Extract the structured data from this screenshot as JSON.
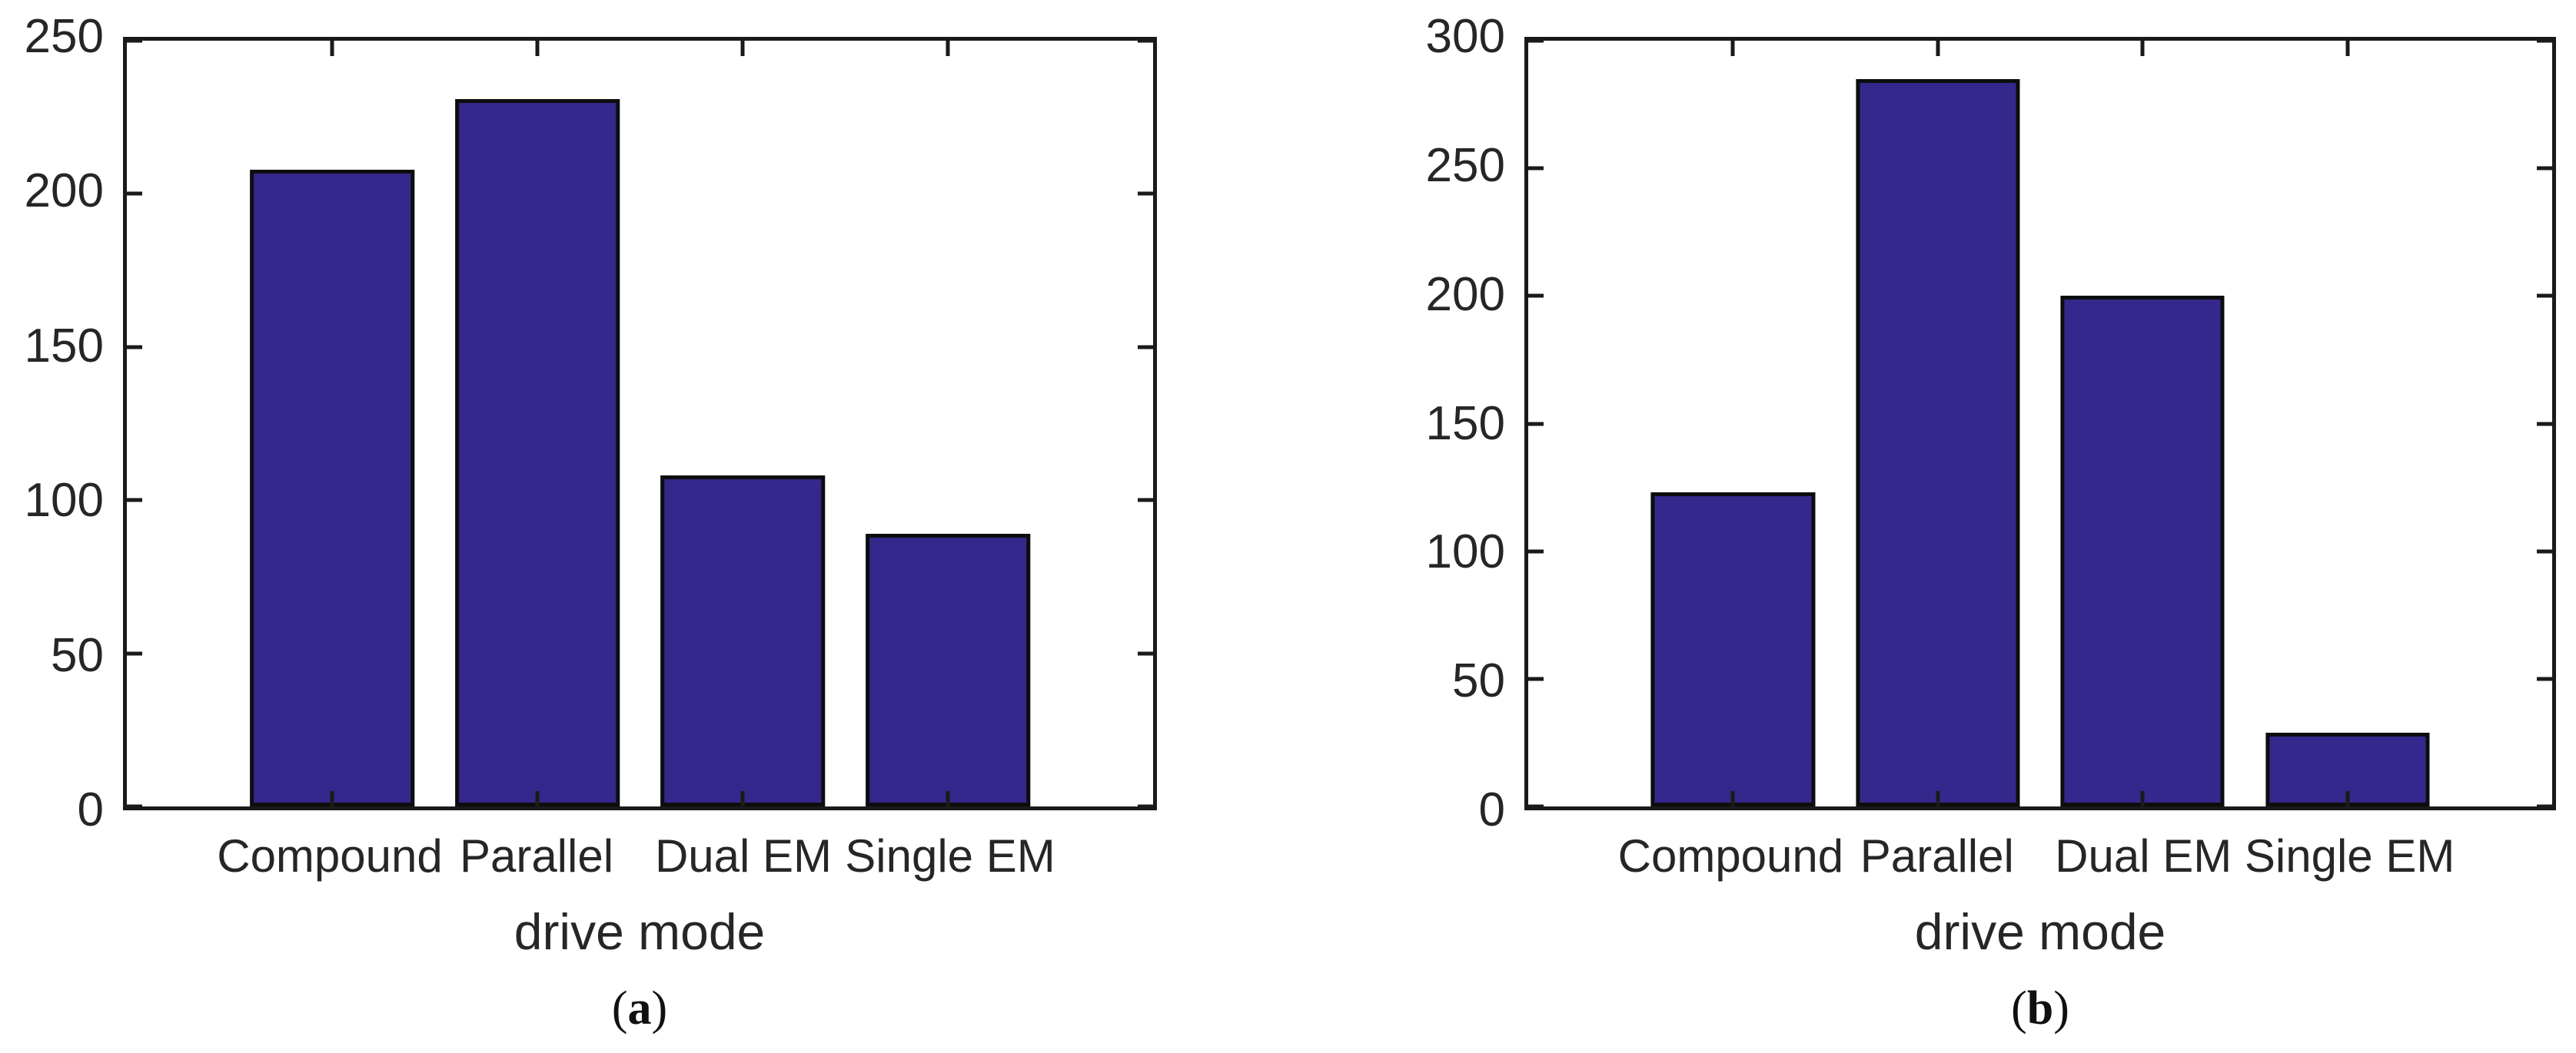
{
  "figure": {
    "background_color": "#ffffff",
    "axis_color": "#1a1a1a",
    "text_color": "#262626",
    "bar_fill_color": "#35288c",
    "bar_edge_color": "#0d0d0d"
  },
  "chart_data": [
    {
      "type": "bar",
      "panel": "a",
      "caption": "(a)",
      "title": "",
      "xlabel": "drive mode",
      "ylabel": "",
      "categories": [
        "Compound",
        "Parallel",
        "Dual EM",
        "Single EM"
      ],
      "values": [
        208,
        231,
        108,
        89
      ],
      "ylim": [
        0,
        250
      ],
      "ytick_step": 50,
      "yticks": [
        0,
        50,
        100,
        150,
        200,
        250
      ],
      "bar_width_frac": 0.16,
      "grid": false,
      "legend": "none",
      "box": "on",
      "tick_direction": "in"
    },
    {
      "type": "bar",
      "panel": "b",
      "caption": "(b)",
      "title": "",
      "xlabel": "drive mode",
      "ylabel": "",
      "categories": [
        "Compound",
        "Parallel",
        "Dual EM",
        "Single EM"
      ],
      "values": [
        123,
        285,
        200,
        29
      ],
      "ylim": [
        0,
        300
      ],
      "ytick_step": 50,
      "yticks": [
        0,
        50,
        100,
        150,
        200,
        250,
        300
      ],
      "bar_width_frac": 0.16,
      "grid": false,
      "legend": "none",
      "box": "on",
      "tick_direction": "in"
    }
  ]
}
